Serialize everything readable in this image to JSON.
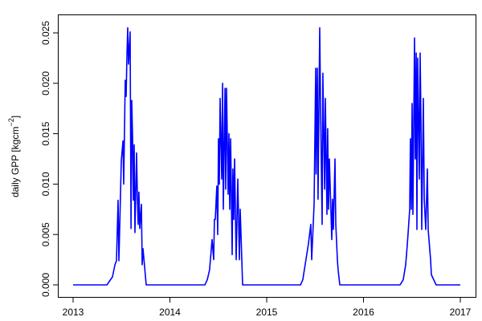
{
  "chart_data": {
    "type": "line",
    "title": "",
    "xlabel": "",
    "ylabel": "daily GPP [kgcm^-2]",
    "ylabel_parts": {
      "main": "daily GPP [kgcm",
      "sup": "−2",
      "close": "]"
    },
    "xlim": [
      2012.85,
      2017.15
    ],
    "ylim": [
      -0.0012,
      0.0266
    ],
    "x_ticks": [
      2013,
      2014,
      2015,
      2016,
      2017
    ],
    "x_tick_labels": [
      "2013",
      "2014",
      "2015",
      "2016",
      "2017"
    ],
    "y_ticks": [
      0,
      0.005,
      0.01,
      0.015,
      0.02,
      0.025
    ],
    "y_tick_labels": [
      "0.000",
      "0.005",
      "0.010",
      "0.015",
      "0.020",
      "0.025"
    ],
    "grid": false,
    "legend": "none",
    "color": "#0000ff",
    "series": [
      {
        "x": [
          2013.0,
          2013.349,
          2013.407,
          2013.432,
          2013.448,
          2013.465,
          2013.473,
          2013.498,
          2013.515,
          2013.523,
          2013.539,
          2013.548,
          2013.556,
          2013.564,
          2013.573,
          2013.589,
          2013.598,
          2013.606,
          2013.614,
          2013.622,
          2013.631,
          2013.639,
          2013.656,
          2013.664,
          2013.672,
          2013.68,
          2013.689,
          2013.705,
          2013.714,
          2013.722,
          2013.755,
          2014.361,
          2014.386,
          2014.41,
          2014.436,
          2014.452,
          2014.46,
          2014.469,
          2014.485,
          2014.494,
          2014.502,
          2014.51,
          2014.519,
          2014.535,
          2014.544,
          2014.552,
          2014.569,
          2014.577,
          2014.585,
          2014.602,
          2014.61,
          2014.618,
          2014.627,
          2014.643,
          2014.651,
          2014.66,
          2014.668,
          2014.685,
          2014.701,
          2014.718,
          2014.726,
          2014.751,
          2015.349,
          2015.373,
          2015.43,
          2015.456,
          2015.465,
          2015.49,
          2015.506,
          2015.51,
          2015.523,
          2015.53,
          2015.548,
          2015.556,
          2015.573,
          2015.58,
          2015.598,
          2015.606,
          2015.622,
          2015.63,
          2015.639,
          2015.647,
          2015.672,
          2015.68,
          2015.689,
          2015.705,
          2015.714,
          2015.73,
          2015.738,
          2015.755,
          2016.378,
          2016.41,
          2016.436,
          2016.452,
          2016.46,
          2016.477,
          2016.485,
          2016.494,
          2016.502,
          2016.51,
          2016.527,
          2016.535,
          2016.544,
          2016.552,
          2016.56,
          2016.577,
          2016.585,
          2016.593,
          2016.602,
          2016.618,
          2016.627,
          2016.643,
          2016.66,
          2016.668,
          2016.676,
          2016.693,
          2016.701,
          2016.75,
          2017.0
        ],
        "y": [
          0,
          0,
          0.0008,
          0.002,
          0.0024,
          0.0084,
          0.0024,
          0.0123,
          0.0143,
          0.01,
          0.0203,
          0.0187,
          0.0227,
          0.0255,
          0.0219,
          0.0251,
          0.0056,
          0.0183,
          0.0147,
          0.0084,
          0.0139,
          0.0052,
          0.0131,
          0.0088,
          0.006,
          0.0092,
          0.0056,
          0.008,
          0.002,
          0.0036,
          0,
          0,
          0.0005,
          0.0015,
          0.0045,
          0.0025,
          0.0065,
          0.0065,
          0.0098,
          0.005,
          0.0145,
          0.01,
          0.0185,
          0.0105,
          0.02,
          0.0075,
          0.0195,
          0.0095,
          0.0195,
          0.009,
          0.015,
          0.0075,
          0.0145,
          0.003,
          0.0115,
          0.0065,
          0.0125,
          0.0025,
          0.0105,
          0.0025,
          0.0075,
          0,
          0,
          0.0005,
          0.004,
          0.006,
          0.0025,
          0.008,
          0.0215,
          0.011,
          0.0215,
          0.0085,
          0.0255,
          0.018,
          0.006,
          0.021,
          0.0095,
          0.0185,
          0.007,
          0.0155,
          0.0075,
          0.0125,
          0.0045,
          0.0085,
          0.0055,
          0.0125,
          0.006,
          0.0025,
          0.0015,
          0,
          0,
          0.0005,
          0.002,
          0.004,
          0.005,
          0.0075,
          0.0145,
          0.0075,
          0.018,
          0.007,
          0.0245,
          0.0125,
          0.023,
          0.0055,
          0.0225,
          0.0105,
          0.023,
          0.0165,
          0.0055,
          0.0185,
          0.0085,
          0.0055,
          0.0115,
          0.0055,
          0.0045,
          0.0025,
          0.001,
          0,
          0
        ]
      }
    ]
  }
}
